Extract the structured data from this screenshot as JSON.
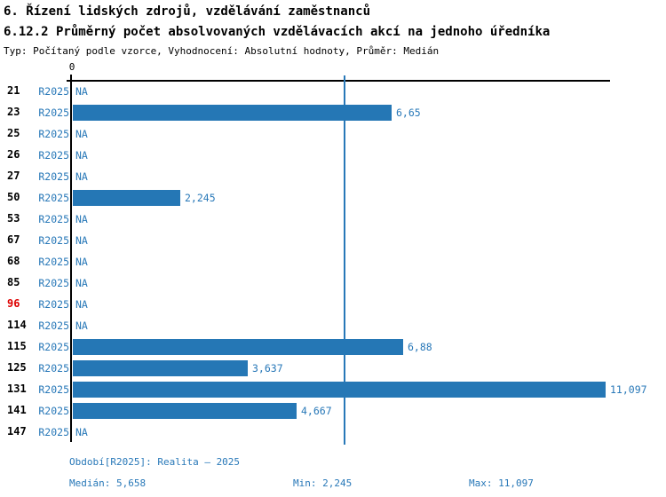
{
  "header": {
    "title1": "6. Řízení lidských zdrojů, vzdělávání zaměstnanců",
    "title2": "6.12.2 Průměrný počet absolvovaných vzdělávacích akcí na jednoho úředníka",
    "meta": "Typ: Počítaný podle vzorce, Vyhodnocení: Absolutní hodnoty, Průměr: Medián"
  },
  "chart_data": {
    "type": "bar",
    "orientation": "horizontal",
    "title": "6.12.2 Průměrný počet absolvovaných vzdělávacích akcí na jednoho úředníka",
    "xlabel": "",
    "ylabel": "",
    "xlim": [
      0,
      11.21
    ],
    "axis": {
      "zero_label": "0",
      "median_value": 5.658
    },
    "period_label": "R2025",
    "na_label": "NA",
    "rows": [
      {
        "id": "21",
        "period": "R2025",
        "value": null,
        "label": "NA",
        "highlight": false
      },
      {
        "id": "23",
        "period": "R2025",
        "value": 6.65,
        "label": "6,65",
        "highlight": false
      },
      {
        "id": "25",
        "period": "R2025",
        "value": null,
        "label": "NA",
        "highlight": false
      },
      {
        "id": "26",
        "period": "R2025",
        "value": null,
        "label": "NA",
        "highlight": false
      },
      {
        "id": "27",
        "period": "R2025",
        "value": null,
        "label": "NA",
        "highlight": false
      },
      {
        "id": "50",
        "period": "R2025",
        "value": 2.245,
        "label": "2,245",
        "highlight": false
      },
      {
        "id": "53",
        "period": "R2025",
        "value": null,
        "label": "NA",
        "highlight": false
      },
      {
        "id": "67",
        "period": "R2025",
        "value": null,
        "label": "NA",
        "highlight": false
      },
      {
        "id": "68",
        "period": "R2025",
        "value": null,
        "label": "NA",
        "highlight": false
      },
      {
        "id": "85",
        "period": "R2025",
        "value": null,
        "label": "NA",
        "highlight": false
      },
      {
        "id": "96",
        "period": "R2025",
        "value": null,
        "label": "NA",
        "highlight": true
      },
      {
        "id": "114",
        "period": "R2025",
        "value": null,
        "label": "NA",
        "highlight": false
      },
      {
        "id": "115",
        "period": "R2025",
        "value": 6.88,
        "label": "6,88",
        "highlight": false
      },
      {
        "id": "125",
        "period": "R2025",
        "value": 3.637,
        "label": "3,637",
        "highlight": false
      },
      {
        "id": "131",
        "period": "R2025",
        "value": 11.097,
        "label": "11,097",
        "highlight": false
      },
      {
        "id": "141",
        "period": "R2025",
        "value": 4.667,
        "label": "4,667",
        "highlight": false
      },
      {
        "id": "147",
        "period": "R2025",
        "value": null,
        "label": "NA",
        "highlight": false
      }
    ],
    "stats": {
      "median": 5.658,
      "min": 2.245,
      "max": 11.097
    }
  },
  "footer": {
    "period_line": "Období[R2025]: Realita – 2025",
    "median_label": "Medián: 5,658",
    "min_label": "Min: 2,245",
    "max_label": "Max: 11,097"
  },
  "colors": {
    "bar": "#2577b5",
    "text_blue": "#2878b8",
    "highlight_red": "#dd0000",
    "axis": "#000000"
  }
}
